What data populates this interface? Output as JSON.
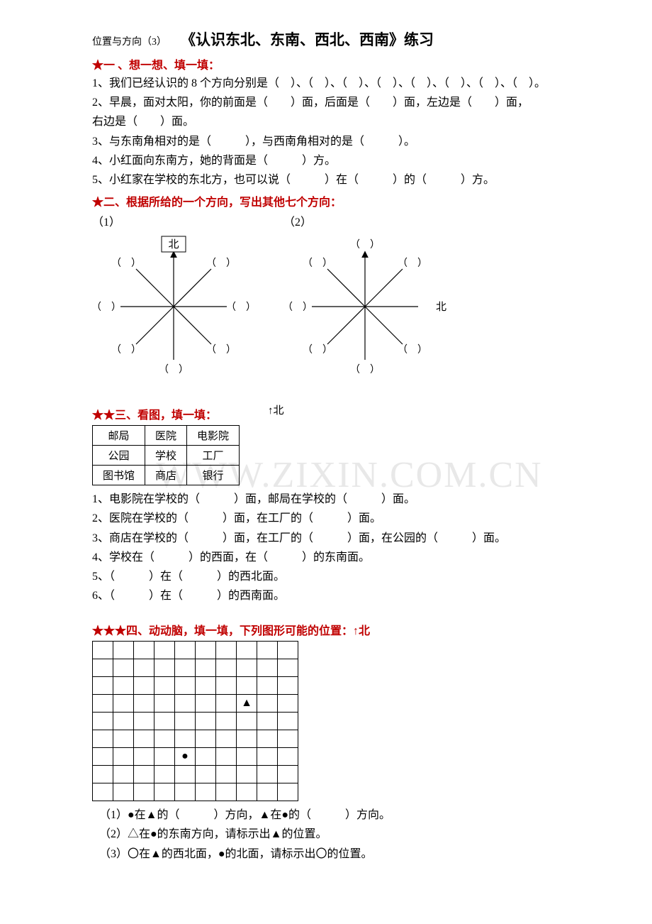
{
  "header": {
    "small": "位置与方向（3）",
    "big": "《认识东北、东南、西北、西南》练习"
  },
  "section1": {
    "title": "★一 、想一想、填一填：",
    "q1": "1、我们已经认识的 8 个方向分别是（　）、（　）、（　）、（　）、（　）、（　）、（　）、（　）。",
    "q2a": "2、早晨，面对太阳，你的前面是（　　）面，后面是（　　）面，左边是（　　）面，",
    "q2b": "右边是（　　）面。",
    "q3": "3、与东南角相对的是（　　　），与西南角相对的是（　　　）。",
    "q4": "4、小红面向东南方，她的背面是（　　　）方。",
    "q5": "5、小红家在学校的东北方，也可以说（　　　）在（　　　）的（　　　）方。"
  },
  "section2": {
    "title": "★二、根据所给的一个方向，写出其他七个方向：",
    "d1_label": "（1）",
    "d2_label": "（2）",
    "given1": "北",
    "given2": "北",
    "blank": "（　）"
  },
  "section3": {
    "title": "★★三、看图，填一填：",
    "north": "↑北",
    "table": {
      "r1": [
        "邮局",
        "医院",
        "电影院"
      ],
      "r2": [
        "公园",
        "学校",
        "工厂"
      ],
      "r3": [
        "图书馆",
        "商店",
        "银行"
      ]
    },
    "q1": "1、电影院在学校的（　　　）面，邮局在学校的（　　　）面。",
    "q2": "2、医院在学校的（　　　）面，在工厂的（　　　）面。",
    "q3": "3、商店在学校的（　　　）面，在工厂的（　　　）面，在公园的（　　　）面。",
    "q4": "4、学校在（　　　）的西面，在（　　　）的东南面。",
    "q5": "5、（　　　）在（　　　）的西北面。",
    "q6": "6、（　　　）在（　　　）的西南面。"
  },
  "section4": {
    "title": "★★★四、动动脑，填一填，下列图形可能的位置：↑北",
    "grid": {
      "rows": 9,
      "cols": 10,
      "triangle": {
        "row": 3,
        "col": 7,
        "char": "▲"
      },
      "circle": {
        "row": 6,
        "col": 4,
        "char": "●"
      }
    },
    "q1": "（1）●在▲的（　　　）方向，▲在●的（　　　）方向。",
    "q2": "（2）△在●的东南方向，请标示出▲的位置。",
    "q3": "（3）〇在▲的西北面，●的北面，请标示出〇的位置。"
  },
  "colors": {
    "text": "#000000",
    "title": "#c00000",
    "watermark": "#e8e8e8"
  }
}
